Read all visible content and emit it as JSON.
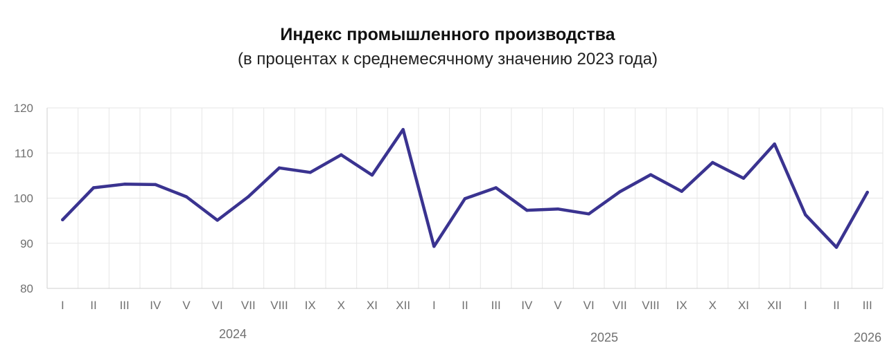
{
  "chart_data": {
    "type": "line",
    "title": "Индекс промышленного производства",
    "subtitle": "(в процентах к среднемесячному значению 2023 года)",
    "xlabel": "",
    "ylabel": "",
    "ylim": [
      80,
      120
    ],
    "yticks": [
      "80",
      "90",
      "100",
      "110",
      "120"
    ],
    "grid": true,
    "categories": [
      "I",
      "II",
      "III",
      "IV",
      "V",
      "VI",
      "VII",
      "VIII",
      "IX",
      "X",
      "XI",
      "XII",
      "I",
      "II",
      "III",
      "IV",
      "V",
      "VI",
      "VII",
      "VIII",
      "IX",
      "X",
      "XI",
      "XII",
      "I",
      "II",
      "III"
    ],
    "years": [
      {
        "label": "2024",
        "start": 0,
        "end": 11
      },
      {
        "label": "2025",
        "start": 12,
        "end": 23
      },
      {
        "label": "2026",
        "start": 24,
        "end": 26
      }
    ],
    "series": [
      {
        "color": "#3a3390",
        "values": [
          95.2,
          102.3,
          103.1,
          103.0,
          100.3,
          95.1,
          100.3,
          106.7,
          105.7,
          109.6,
          105.1,
          115.2,
          89.3,
          99.9,
          102.3,
          97.3,
          97.6,
          96.5,
          101.4,
          105.2,
          101.5,
          107.9,
          104.4,
          112.0,
          96.3,
          89.1,
          101.3
        ]
      }
    ]
  }
}
